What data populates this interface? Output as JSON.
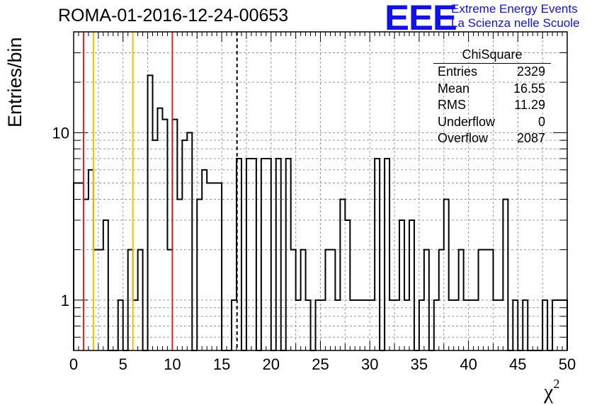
{
  "title": "ROMA-01-2016-12-24-00653",
  "logo": {
    "mark": "EEE",
    "line1": "Extreme Energy Events",
    "line2": "La Scienza nelle Scuole",
    "color": "#1111ee"
  },
  "stats_box": {
    "title": "ChiSquare",
    "rows": [
      {
        "key": "Entries",
        "value": "2329"
      },
      {
        "key": "Mean",
        "value": "16.55"
      },
      {
        "key": "RMS",
        "value": "11.29"
      },
      {
        "key": "Underflow",
        "value": "0"
      },
      {
        "key": "Overflow",
        "value": "2087"
      }
    ]
  },
  "chart_data": {
    "type": "bar",
    "histogram_style": "step",
    "title": "ROMA-01-2016-12-24-00653",
    "xlabel": "χ",
    "xlabel_superscript": "2",
    "ylabel": "Entries/bin",
    "x_bin_width": 0.5,
    "xlim": [
      0,
      50
    ],
    "ylim": [
      0.5,
      40
    ],
    "yscale": "log",
    "grid": true,
    "x_ticks": [
      0,
      5,
      10,
      15,
      20,
      25,
      30,
      35,
      40,
      45,
      50
    ],
    "y_ticks": [
      1,
      10
    ],
    "bin_counts": [
      5,
      5,
      4,
      6,
      2,
      2,
      3,
      0,
      0,
      1,
      0,
      2,
      1,
      2,
      0,
      22,
      9,
      14,
      12,
      2,
      12,
      4,
      9,
      10,
      0,
      4,
      6,
      5,
      5,
      5,
      0,
      0,
      1,
      7,
      0,
      7,
      7,
      0,
      7,
      7,
      0,
      7,
      0,
      7,
      2,
      1,
      2,
      1,
      0,
      1,
      1,
      2,
      2,
      1,
      4,
      3,
      1,
      1,
      1,
      1,
      1,
      7,
      0,
      7,
      1,
      1,
      3,
      1,
      3,
      0,
      1,
      2,
      0,
      1,
      2,
      4,
      1,
      1,
      2,
      1,
      1,
      1,
      2,
      2,
      2,
      1,
      1,
      4,
      0,
      1,
      0,
      1,
      0,
      0,
      0,
      1,
      0,
      1,
      1,
      1
    ],
    "reference_lines": [
      {
        "x": 1,
        "color": "#e02020",
        "style": "solid"
      },
      {
        "x": 2,
        "color": "#f0c000",
        "style": "solid"
      },
      {
        "x": 6,
        "color": "#f0c000",
        "style": "solid"
      },
      {
        "x": 10,
        "color": "#e02020",
        "style": "solid"
      },
      {
        "x": 16.55,
        "color": "#000000",
        "style": "dashed"
      }
    ]
  }
}
